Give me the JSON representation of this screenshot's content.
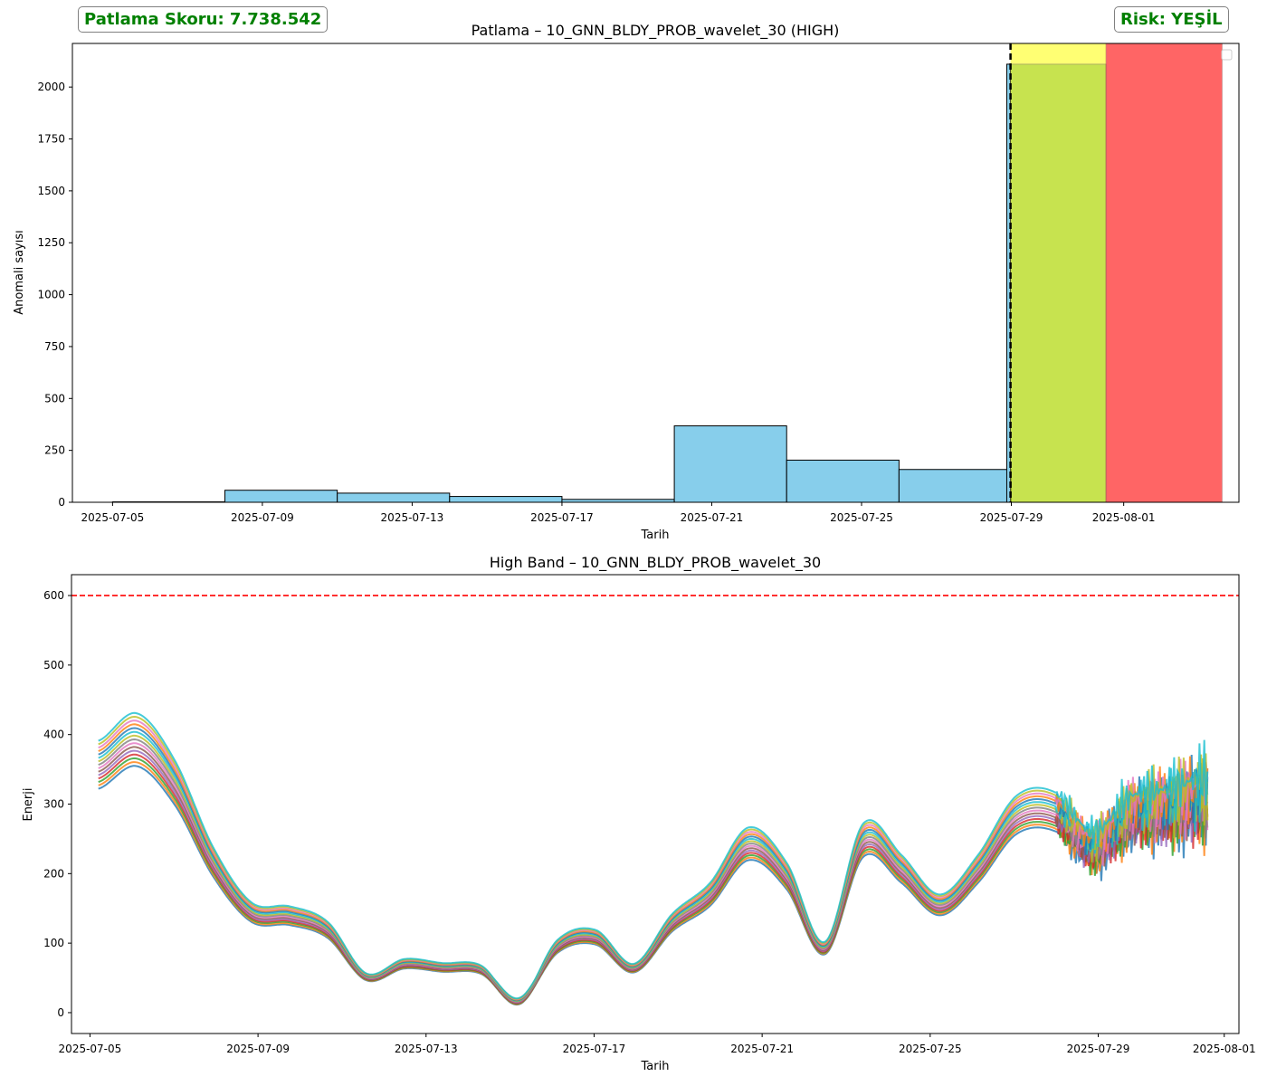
{
  "header": {
    "score_label": "Patlama Skoru: 7.738.542",
    "risk_label": "Risk: YEŞİL",
    "label_color": "#008000"
  },
  "colors": {
    "bar": "#87CEEB",
    "yellow_zone": "#FFFF00",
    "green_zone": "#9ACD32",
    "red_zone": "#FF0000",
    "threshold": "#FF0000"
  },
  "chart_data": [
    {
      "type": "bar",
      "title": "Patlama – 10_GNN_BLDY_PROB_wavelet_30 (HIGH)",
      "xlabel": "Tarih",
      "ylabel": "Anomali sayısı",
      "xlim": [
        "2025-07-04",
        "2025-08-04"
      ],
      "ylim": [
        0,
        2210
      ],
      "yticks": [
        0,
        250,
        500,
        750,
        1000,
        1250,
        1500,
        1750,
        2000
      ],
      "xticks": [
        "2025-07-05",
        "2025-07-09",
        "2025-07-13",
        "2025-07-17",
        "2025-07-21",
        "2025-07-25",
        "2025-07-29",
        "2025-08-01"
      ],
      "bins": [
        {
          "start": "2025-07-05",
          "end": "2025-07-08",
          "value": 2
        },
        {
          "start": "2025-07-08",
          "end": "2025-07-11",
          "value": 58
        },
        {
          "start": "2025-07-11",
          "end": "2025-07-14",
          "value": 44
        },
        {
          "start": "2025-07-14",
          "end": "2025-07-17",
          "value": 28
        },
        {
          "start": "2025-07-17",
          "end": "2025-07-20",
          "value": 14
        },
        {
          "start": "2025-07-20",
          "end": "2025-07-23",
          "value": 368
        },
        {
          "start": "2025-07-23",
          "end": "2025-07-26",
          "value": 203
        },
        {
          "start": "2025-07-26",
          "end": "2025-07-29",
          "value": 158
        },
        {
          "start": "2025-07-29",
          "end": "2025-07-29",
          "value": 2110
        }
      ],
      "forecast_zones": [
        {
          "start": "2025-07-29",
          "end": "2025-07-31",
          "color": "yellow"
        },
        {
          "start": "2025-07-29",
          "end": "2025-07-31",
          "value": 2110,
          "color": "green"
        },
        {
          "start": "2025-07-31",
          "end": "2025-08-03",
          "color": "red"
        }
      ],
      "marker_date": "2025-07-29",
      "legend": "top-right"
    },
    {
      "type": "line",
      "title": "High Band – 10_GNN_BLDY_PROB_wavelet_30",
      "xlabel": "Tarih",
      "ylabel": "Enerji",
      "xlim": [
        "2025-07-04",
        "2025-08-01"
      ],
      "ylim": [
        -30,
        630
      ],
      "yticks": [
        0,
        100,
        200,
        300,
        400,
        500,
        600
      ],
      "xticks": [
        "2025-07-05",
        "2025-07-09",
        "2025-07-13",
        "2025-07-17",
        "2025-07-21",
        "2025-07-25",
        "2025-07-29",
        "2025-08-01"
      ],
      "threshold": 600,
      "base_curve": {
        "x": [
          "2025-07-05",
          "2025-07-06",
          "2025-07-07",
          "2025-07-08",
          "2025-07-09",
          "2025-07-10",
          "2025-07-11",
          "2025-07-12",
          "2025-07-13",
          "2025-07-13",
          "2025-07-14",
          "2025-07-15",
          "2025-07-16",
          "2025-07-16",
          "2025-07-17",
          "2025-07-18",
          "2025-07-19",
          "2025-07-20",
          "2025-07-20",
          "2025-07-21",
          "2025-07-22",
          "2025-07-23",
          "2025-07-24",
          "2025-07-25",
          "2025-07-26",
          "2025-07-27",
          "2025-07-28",
          "2025-07-29",
          "2025-07-30",
          "2025-07-31"
        ],
        "y": [
          345,
          380,
          320,
          210,
          140,
          135,
          115,
          50,
          68,
          63,
          60,
          15,
          92,
          105,
          62,
          125,
          165,
          235,
          190,
          90,
          240,
          200,
          150,
          200,
          275,
          280,
          230,
          275,
          285,
          300
        ]
      },
      "series_count": 15,
      "series_spread": [
        -20,
        40
      ],
      "palette": [
        "#1f77b4",
        "#ff7f0e",
        "#2ca02c",
        "#d62728",
        "#9467bd",
        "#8c564b",
        "#e377c2",
        "#7f7f7f",
        "#bcbd22",
        "#17becf",
        "#1f77b4",
        "#ff7f0e",
        "#e377c2",
        "#bcbd22",
        "#17becf"
      ]
    }
  ]
}
